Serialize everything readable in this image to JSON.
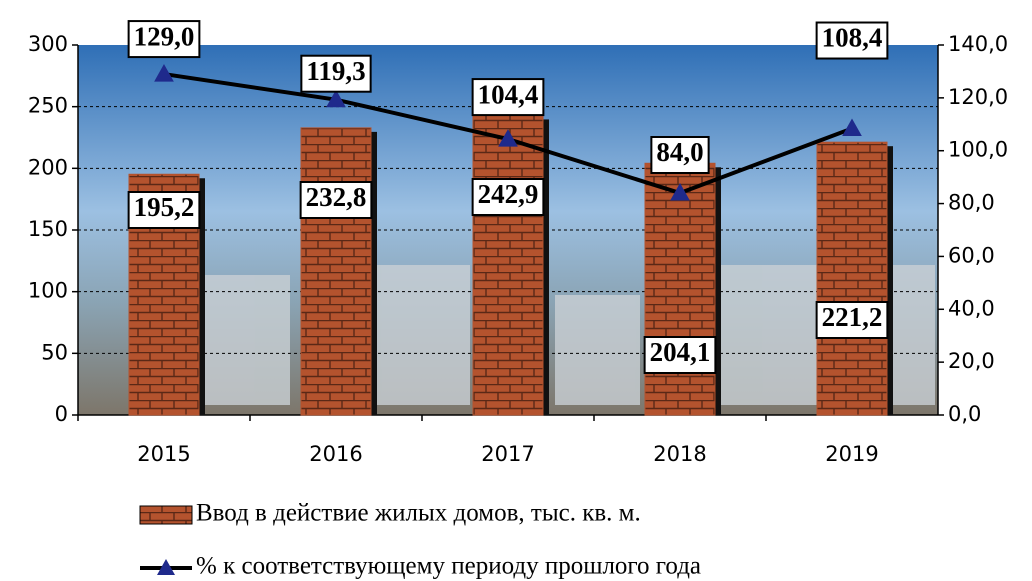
{
  "chart_data": {
    "type": "bar-line",
    "categories": [
      "2015",
      "2016",
      "2017",
      "2018",
      "2019"
    ],
    "series": [
      {
        "name": "Ввод в действие жилых домов, тыс. кв. м.",
        "type": "bar",
        "color": "#b4532e",
        "values": [
          195.2,
          232.8,
          242.9,
          204.1,
          221.2
        ],
        "value_labels": [
          "195,2",
          "232,8",
          "242,9",
          "204,1",
          "221,2"
        ]
      },
      {
        "name": "% к соответствующему периоду прошлого года",
        "type": "line",
        "axis": "y2",
        "color": "#000000",
        "marker_color": "#1f2a8c",
        "values": [
          129.0,
          119.3,
          104.4,
          84.0,
          108.4
        ],
        "value_labels": [
          "129,0",
          "119,3",
          "104,4",
          "84,0",
          "108,4"
        ]
      }
    ],
    "ylim": [
      0,
      300
    ],
    "yticks": [
      0,
      50,
      100,
      150,
      200,
      250,
      300
    ],
    "y2lim": [
      0,
      140
    ],
    "y2ticks": [
      {
        "value": 0,
        "label": "0,0"
      },
      {
        "value": 20,
        "label": "20,0"
      },
      {
        "value": 40,
        "label": "40,0"
      },
      {
        "value": 60,
        "label": "60,0"
      },
      {
        "value": 80,
        "label": "80,0"
      },
      {
        "value": 100,
        "label": "100,0"
      },
      {
        "value": 120,
        "label": "120,0"
      },
      {
        "value": 140,
        "label": "140,0"
      }
    ],
    "grid": true
  }
}
